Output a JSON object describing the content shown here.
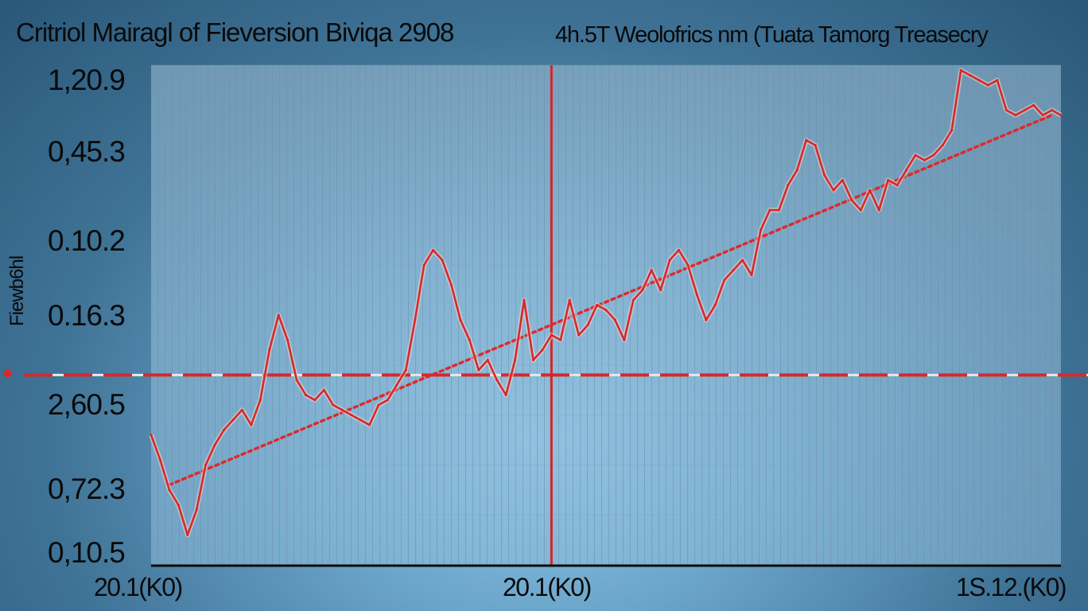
{
  "chart_data": {
    "type": "line",
    "title": "Critriol Mairagl of Fieversion Biviqa 2908",
    "subtitle": "4h.5T Weolofrics nm (Tuata Tamorg Treasecry",
    "ylabel": "Fiewb6hl",
    "y_tick_labels": [
      "1,20.9",
      "0,45.3",
      "0.10.2",
      "0.16.3",
      "2,60.5",
      "0,72.3",
      "0,10.5"
    ],
    "x_tick_labels": [
      "20.1(K0)",
      "20.1(K0)",
      "1S.12.(K0)"
    ],
    "xlim": [
      0,
      100
    ],
    "ylim": [
      0,
      100
    ],
    "grid": true,
    "series": [
      {
        "values": [
          [
            0,
            26
          ],
          [
            1,
            21
          ],
          [
            2,
            15
          ],
          [
            3,
            12
          ],
          [
            4,
            6
          ],
          [
            5,
            11
          ],
          [
            6,
            20
          ],
          [
            7,
            24
          ],
          [
            8,
            27
          ],
          [
            9,
            29
          ],
          [
            10,
            31
          ],
          [
            11,
            28
          ],
          [
            12,
            33
          ],
          [
            13,
            43
          ],
          [
            14,
            50
          ],
          [
            15,
            45
          ],
          [
            16,
            37
          ],
          [
            17,
            34
          ],
          [
            18,
            33
          ],
          [
            19,
            35
          ],
          [
            20,
            32
          ],
          [
            21,
            31
          ],
          [
            22,
            30
          ],
          [
            23,
            29
          ],
          [
            24,
            28
          ],
          [
            25,
            32
          ],
          [
            26,
            33
          ],
          [
            27,
            36
          ],
          [
            28,
            39
          ],
          [
            29,
            49
          ],
          [
            30,
            60
          ],
          [
            31,
            63
          ],
          [
            32,
            61
          ],
          [
            33,
            56
          ],
          [
            34,
            49
          ],
          [
            35,
            45
          ],
          [
            36,
            39
          ],
          [
            37,
            41
          ],
          [
            38,
            37
          ],
          [
            39,
            34
          ],
          [
            40,
            41
          ],
          [
            41,
            53
          ],
          [
            42,
            41
          ],
          [
            43,
            43
          ],
          [
            44,
            46
          ],
          [
            45,
            45
          ],
          [
            46,
            53
          ],
          [
            47,
            46
          ],
          [
            48,
            48
          ],
          [
            49,
            52
          ],
          [
            50,
            51
          ],
          [
            51,
            49
          ],
          [
            52,
            45
          ],
          [
            53,
            53
          ],
          [
            54,
            55
          ],
          [
            55,
            59
          ],
          [
            56,
            55
          ],
          [
            57,
            61
          ],
          [
            58,
            63
          ],
          [
            59,
            60
          ],
          [
            60,
            54
          ],
          [
            61,
            49
          ],
          [
            62,
            52
          ],
          [
            63,
            57
          ],
          [
            64,
            59
          ],
          [
            65,
            61
          ],
          [
            66,
            58
          ],
          [
            67,
            67
          ],
          [
            68,
            71
          ],
          [
            69,
            71
          ],
          [
            70,
            76
          ],
          [
            71,
            79
          ],
          [
            72,
            85
          ],
          [
            73,
            84
          ],
          [
            74,
            78
          ],
          [
            75,
            75
          ],
          [
            76,
            77
          ],
          [
            77,
            73
          ],
          [
            78,
            71
          ],
          [
            79,
            75
          ],
          [
            80,
            71
          ],
          [
            81,
            77
          ],
          [
            82,
            76
          ],
          [
            83,
            79
          ],
          [
            84,
            82
          ],
          [
            85,
            81
          ],
          [
            86,
            82
          ],
          [
            87,
            84
          ],
          [
            88,
            87
          ],
          [
            89,
            99
          ],
          [
            90,
            98
          ],
          [
            91,
            97
          ],
          [
            92,
            96
          ],
          [
            93,
            97
          ],
          [
            94,
            91
          ],
          [
            95,
            90
          ],
          [
            96,
            91
          ],
          [
            97,
            92
          ],
          [
            98,
            90
          ],
          [
            99,
            91
          ],
          [
            100,
            90
          ]
        ],
        "color": "#d42a2a"
      }
    ],
    "trend_line": {
      "from": [
        2,
        16
      ],
      "to": [
        99,
        90
      ],
      "style": "dotted",
      "color": "#e0282a"
    },
    "horizontal_reference": {
      "y": 38,
      "style": "dashed",
      "color": "#d8282a"
    },
    "vertical_marker": {
      "x": 44,
      "color": "#d82424"
    }
  },
  "colors": {
    "background": "#5b93b8",
    "plot_area": "#a8c6da",
    "grid": "#6d90a8",
    "line": "#d42a2a"
  }
}
